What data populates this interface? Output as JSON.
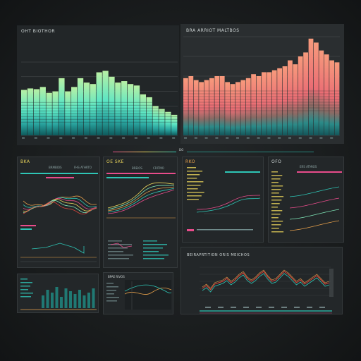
{
  "dashboard": {
    "panel_a": {
      "title": "OHT BIOTHOR"
    },
    "panel_b": {
      "title": "BRA ARRIOT MALTBOS"
    },
    "strip_label": "DO",
    "panel_c": {
      "title": "BKA",
      "col1": "BRMBIOS",
      "col2": "FHS ATHRTO"
    },
    "panel_d": {
      "title": "OE SKE",
      "col1": "BREIOS",
      "col2": "CRITMO"
    },
    "panel_e": {
      "title": "RKO"
    },
    "panel_f": {
      "title": "OFO",
      "col2": "ERS ATMIOS"
    },
    "panel_g": {
      "title": "BEIRAPRTITION ORIS MEICHOS"
    },
    "panel_h": {
      "title": "BPAE RIVOS"
    }
  },
  "colors": {
    "bg": "#161819",
    "panel": "#232729",
    "teal": "#2ec6b6",
    "mint": "#7fe6b8",
    "coral": "#f06a6a",
    "salmon": "#f59c7c",
    "orange": "#e8a14b",
    "pink": "#e84c8b",
    "yellow": "#e8d35a",
    "red": "#d9443b"
  },
  "chart_data": [
    {
      "type": "bar",
      "values": [
        62,
        64,
        63,
        66,
        58,
        60,
        78,
        60,
        66,
        78,
        72,
        70,
        86,
        88,
        80,
        72,
        74,
        70,
        68,
        56,
        52,
        40,
        36,
        32,
        28
      ],
      "ylim": [
        0,
        100
      ]
    },
    {
      "type": "bar",
      "values": [
        58,
        60,
        56,
        54,
        56,
        58,
        60,
        60,
        54,
        52,
        54,
        56,
        58,
        62,
        60,
        64,
        64,
        66,
        68,
        70,
        76,
        72,
        80,
        84,
        98,
        94,
        86,
        82,
        76,
        74
      ],
      "ylim": [
        0,
        100
      ]
    }
  ]
}
